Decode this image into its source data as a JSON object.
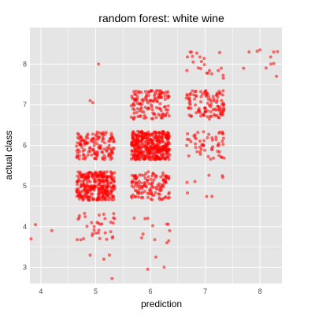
{
  "chart_data": {
    "type": "scatter",
    "title": "random forest: white wine",
    "xlabel": "prediction",
    "ylabel": "actual class",
    "xlim": [
      3.8,
      8.4
    ],
    "ylim": [
      2.6,
      8.9
    ],
    "xticks": [
      4,
      5,
      6,
      7,
      8
    ],
    "yticks": [
      3,
      4,
      5,
      6,
      7,
      8
    ],
    "grid": true,
    "jitter_halfwidth": 0.35,
    "point_color": "#ff0000",
    "point_opacity": 0.55,
    "panel_background": "#e5e5e5",
    "grid_color": "#ffffff",
    "clusters": [
      {
        "x": 5,
        "y": 5,
        "count": 300
      },
      {
        "x": 5,
        "y": 6,
        "count": 140
      },
      {
        "x": 5,
        "y": 4,
        "count": 35
      },
      {
        "x": 6,
        "y": 6,
        "count": 420
      },
      {
        "x": 6,
        "y": 5,
        "count": 130
      },
      {
        "x": 6,
        "y": 7,
        "count": 130
      },
      {
        "x": 6,
        "y": 4,
        "count": 10
      },
      {
        "x": 7,
        "y": 7,
        "count": 110
      },
      {
        "x": 7,
        "y": 6,
        "count": 55
      },
      {
        "x": 7,
        "y": 8,
        "count": 22
      },
      {
        "x": 7,
        "y": 5,
        "count": 8
      },
      {
        "x": 8,
        "y": 8,
        "count": 5
      }
    ],
    "outliers": [
      {
        "x": 3.9,
        "y": 4.05
      },
      {
        "x": 3.82,
        "y": 3.7
      },
      {
        "x": 4.2,
        "y": 3.9
      },
      {
        "x": 5.05,
        "y": 8.0
      },
      {
        "x": 4.95,
        "y": 7.05
      },
      {
        "x": 4.9,
        "y": 7.1
      },
      {
        "x": 5.3,
        "y": 2.72
      },
      {
        "x": 5.95,
        "y": 2.95
      },
      {
        "x": 6.1,
        "y": 3.25
      },
      {
        "x": 6.25,
        "y": 3.0
      },
      {
        "x": 6.3,
        "y": 3.6
      },
      {
        "x": 6.35,
        "y": 3.9
      },
      {
        "x": 4.9,
        "y": 3.3
      },
      {
        "x": 5.15,
        "y": 3.2
      },
      {
        "x": 5.25,
        "y": 3.3
      },
      {
        "x": 8.3,
        "y": 7.7
      },
      {
        "x": 8.2,
        "y": 8.0
      },
      {
        "x": 7.8,
        "y": 8.3
      },
      {
        "x": 7.7,
        "y": 7.9
      },
      {
        "x": 8.25,
        "y": 8.3
      },
      {
        "x": 8.0,
        "y": 8.35
      }
    ]
  }
}
